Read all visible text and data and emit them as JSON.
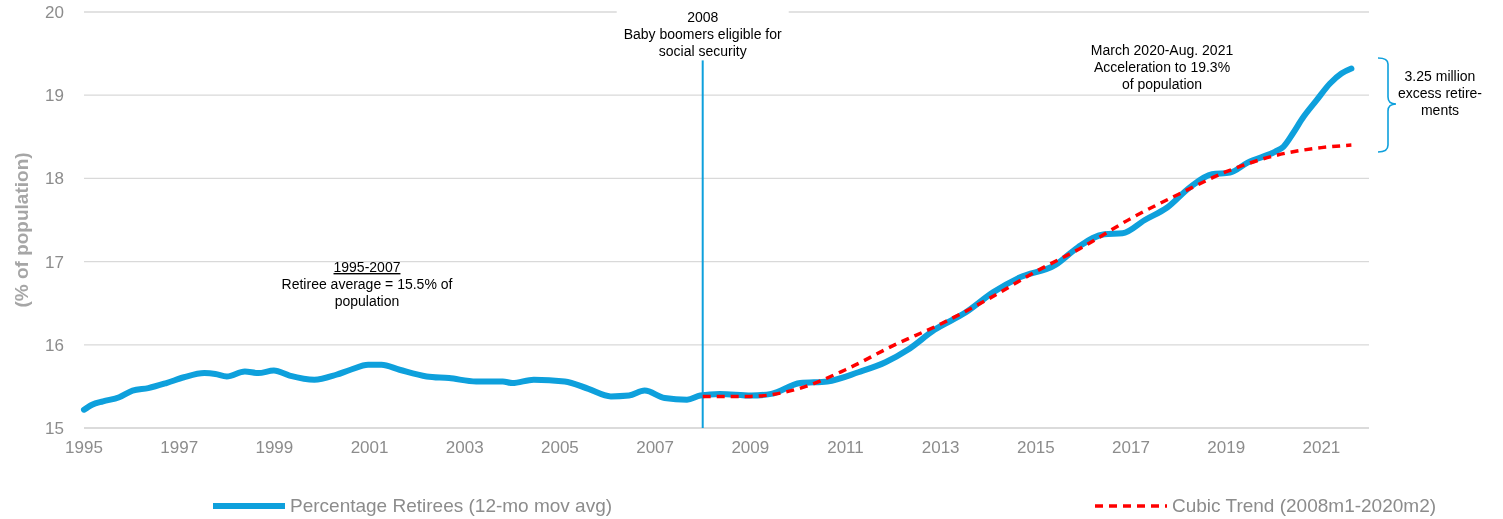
{
  "chart_data": {
    "type": "line",
    "ylabel": "(% of population)",
    "xlim": [
      1995,
      2022
    ],
    "xticks": [
      1995,
      1997,
      1999,
      2001,
      2003,
      2005,
      2007,
      2009,
      2011,
      2013,
      2015,
      2017,
      2019,
      2021
    ],
    "ylim": [
      15,
      20
    ],
    "yticks": [
      15,
      16,
      17,
      18,
      19,
      20
    ],
    "grid": "y",
    "legend": "bottom",
    "marker": "none",
    "series": [
      {
        "name": "Percentage Retirees (12-mo mov avg)",
        "color": "#0ea0dc",
        "line_style": "solid",
        "x": [
          1995.0,
          1995.17,
          1995.4,
          1995.74,
          1996.02,
          1996.35,
          1996.73,
          1997.1,
          1997.53,
          1997.76,
          1998.0,
          1998.38,
          1998.66,
          1998.99,
          1999.32,
          1999.84,
          2000.3,
          2000.6,
          2000.97,
          2001.25,
          2001.63,
          2002.2,
          2002.67,
          2003.24,
          2003.8,
          2004.0,
          2004.45,
          2005.1,
          2005.6,
          2006.07,
          2006.45,
          2006.78,
          2007.2,
          2007.67,
          2007.95,
          2008.36,
          2009.02,
          2009.44,
          2010.05,
          2010.62,
          2011.27,
          2011.84,
          2012.31,
          2012.87,
          2013.53,
          2014.1,
          2014.66,
          2015.41,
          2015.88,
          2016.44,
          2016.82,
          2017.29,
          2017.76,
          2018.23,
          2018.7,
          2019.08,
          2019.45,
          2020.02,
          2020.2,
          2020.4,
          2020.6,
          2020.9,
          2021.18,
          2021.42,
          2021.63
        ],
        "values": [
          15.22,
          15.28,
          15.32,
          15.37,
          15.45,
          15.48,
          15.54,
          15.61,
          15.66,
          15.65,
          15.62,
          15.68,
          15.66,
          15.69,
          15.63,
          15.58,
          15.64,
          15.7,
          15.76,
          15.76,
          15.7,
          15.62,
          15.6,
          15.56,
          15.56,
          15.54,
          15.58,
          15.56,
          15.47,
          15.38,
          15.39,
          15.45,
          15.36,
          15.34,
          15.39,
          15.41,
          15.39,
          15.41,
          15.54,
          15.56,
          15.67,
          15.79,
          15.94,
          16.18,
          16.39,
          16.63,
          16.81,
          16.96,
          17.17,
          17.33,
          17.34,
          17.5,
          17.65,
          17.89,
          18.05,
          18.07,
          18.19,
          18.32,
          18.38,
          18.54,
          18.72,
          18.94,
          19.14,
          19.26,
          19.32
        ]
      },
      {
        "name": "Cubic Trend (2008m1-2020m2)",
        "color": "#ff0000",
        "line_style": "dashed",
        "x": [
          2008,
          2009,
          2010,
          2011,
          2012,
          2013,
          2014,
          2015,
          2016,
          2017,
          2018,
          2019,
          2020,
          2021,
          2021.63
        ],
        "values": [
          15.38,
          15.38,
          15.47,
          15.7,
          15.99,
          16.25,
          16.55,
          16.88,
          17.18,
          17.52,
          17.81,
          18.08,
          18.27,
          18.37,
          18.4
        ]
      }
    ],
    "ref_lines": [
      {
        "axis": "x",
        "value": 2008,
        "label": "2008\nBaby boomers eligible for\nsocial security",
        "color": "#0ea0dc"
      }
    ],
    "annotations": [
      "1995-2007\nRetiree average = 15.5% of\npopulation",
      "March 2020-Aug. 2021\nAcceleration to 19.3%\nof population",
      "3.25 million\nexcess retire-\nments"
    ]
  }
}
